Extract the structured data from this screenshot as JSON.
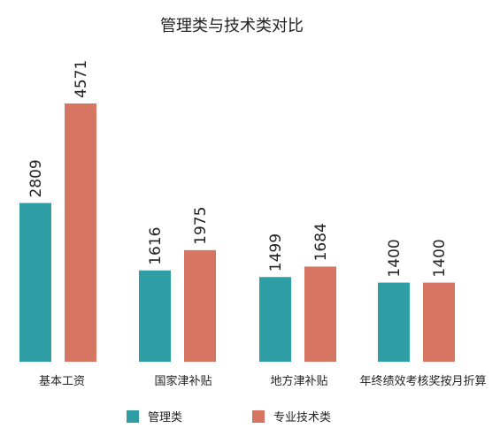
{
  "colors": {
    "series_1": "#2E9EA4",
    "series_2": "#D67561",
    "background": "#FFFFFF",
    "text": "#222222"
  },
  "chart_data": {
    "type": "bar",
    "title": "管理类与技术类对比",
    "categories": [
      "基本工资",
      "国家津补贴",
      "地方津补贴",
      "年终绩效考核奖按月折算"
    ],
    "series": [
      {
        "name": "管理类",
        "values": [
          2809,
          1616,
          1499,
          1400
        ]
      },
      {
        "name": "专业技术类",
        "values": [
          4571,
          1975,
          1684,
          1400
        ]
      }
    ],
    "ylim": [
      0,
      4571
    ],
    "grid": false,
    "legend_position": "bottom",
    "data_labels": true
  }
}
